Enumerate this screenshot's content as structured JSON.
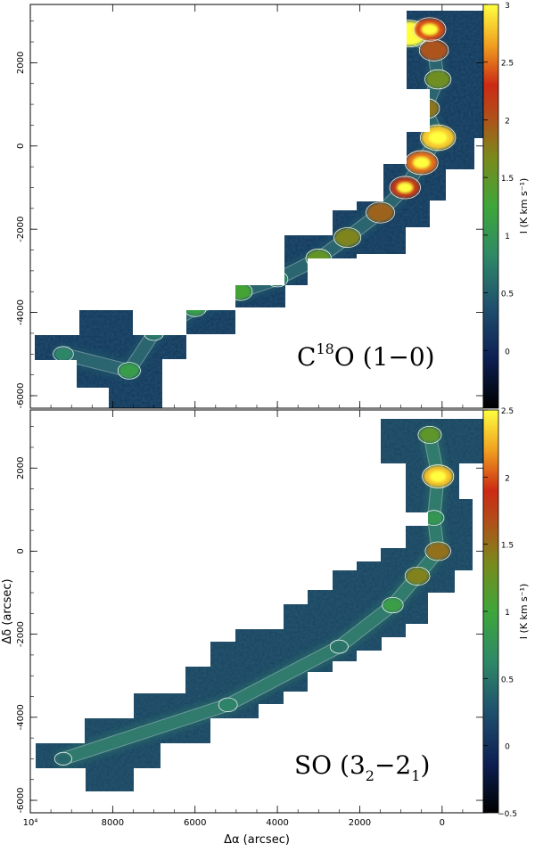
{
  "chart_data": [
    {
      "type": "heatmap",
      "panel": "top",
      "label_main": "C",
      "label_sup": "18",
      "label_rest": "O (1−0)",
      "xlim": [
        10000,
        -1000
      ],
      "ylim": [
        -6300,
        3400
      ],
      "xticks": [
        10000,
        8000,
        6000,
        4000,
        2000,
        0
      ],
      "yticks": [
        2000,
        0,
        -2000,
        -4000,
        -6000
      ],
      "colorbar": {
        "label": "I (K km s⁻¹)",
        "range": [
          -0.5,
          3
        ],
        "ticks": [
          "3",
          "2.5",
          "2",
          "1.5",
          "1",
          "0.5",
          "0"
        ]
      },
      "filament": [
        {
          "x": 9200,
          "y": -5000,
          "i": 0.8
        },
        {
          "x": 7600,
          "y": -5400,
          "i": 1.1
        },
        {
          "x": 7000,
          "y": -4500,
          "i": 0.7
        },
        {
          "x": 6000,
          "y": -3900,
          "i": 1.1
        },
        {
          "x": 4900,
          "y": -3500,
          "i": 1.3
        },
        {
          "x": 4000,
          "y": -3200,
          "i": 0.9
        },
        {
          "x": 3000,
          "y": -2700,
          "i": 1.5
        },
        {
          "x": 2300,
          "y": -2200,
          "i": 1.7
        },
        {
          "x": 1500,
          "y": -1600,
          "i": 1.9
        },
        {
          "x": 900,
          "y": -1000,
          "i": 2.2
        },
        {
          "x": 500,
          "y": -400,
          "i": 2.5
        },
        {
          "x": 100,
          "y": 200,
          "i": 2.8
        },
        {
          "x": 400,
          "y": 900,
          "i": 1.8
        },
        {
          "x": 100,
          "y": 1600,
          "i": 1.6
        },
        {
          "x": 200,
          "y": 2300,
          "i": 2.0
        },
        {
          "x": 800,
          "y": 2700,
          "i": 3.0
        },
        {
          "x": 300,
          "y": 2800,
          "i": 2.4
        }
      ]
    },
    {
      "type": "heatmap",
      "panel": "bottom",
      "label_main": "SO (3",
      "label_sub1": "2",
      "label_mid": "−2",
      "label_sub2": "1",
      "label_end": ")",
      "xlabel": "Δα (arcsec)",
      "ylabel": "Δδ (arcsec)",
      "xlim": [
        10000,
        -1000
      ],
      "ylim": [
        -6300,
        3400
      ],
      "xticks": [
        "10⁴",
        "8000",
        "6000",
        "4000",
        "2000",
        "0"
      ],
      "yticks": [
        2000,
        0,
        -2000,
        -4000,
        -6000
      ],
      "colorbar": {
        "label": "I (K km s⁻¹)",
        "range": [
          -0.5,
          2.5
        ],
        "ticks": [
          "2.5",
          "2",
          "1.5",
          "1",
          "0.5",
          "0",
          "−0.5"
        ]
      },
      "filament": [
        {
          "x": 9200,
          "y": -5000,
          "i": 0.4
        },
        {
          "x": 5200,
          "y": -3700,
          "i": 0.6
        },
        {
          "x": 2500,
          "y": -2300,
          "i": 0.5
        },
        {
          "x": 1200,
          "y": -1300,
          "i": 0.9
        },
        {
          "x": 600,
          "y": -600,
          "i": 1.4
        },
        {
          "x": 100,
          "y": 0,
          "i": 1.5
        },
        {
          "x": 200,
          "y": 800,
          "i": 0.8
        },
        {
          "x": 100,
          "y": 1800,
          "i": 2.3
        },
        {
          "x": 300,
          "y": 2800,
          "i": 1.2
        }
      ]
    }
  ]
}
